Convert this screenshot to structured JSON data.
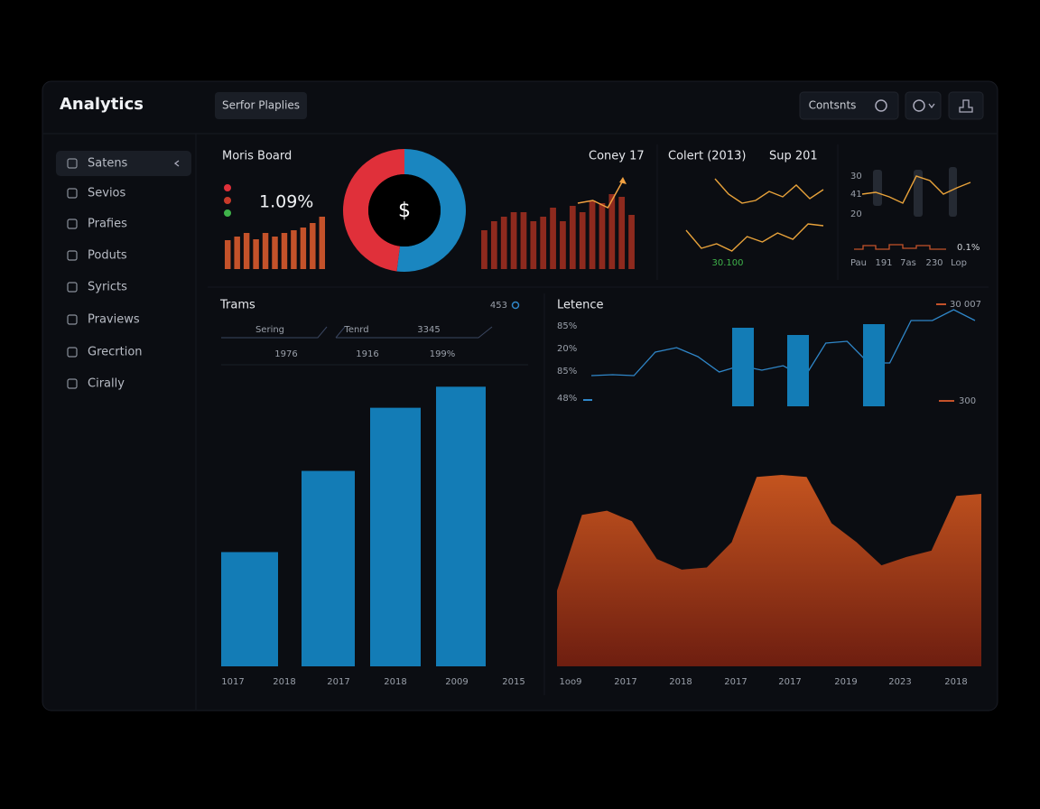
{
  "header": {
    "title": "Analytics",
    "search": "Serfor Plaplies",
    "button": "Contsnts"
  },
  "sidebar": [
    "Satens",
    "Sevios",
    "Prafies",
    "Poduts",
    "Syricts",
    "Praviews",
    "Grecrtion",
    "Cirally"
  ],
  "summary": {
    "title": "Moris Board",
    "value": "1.09%",
    "bars": {
      "type": "bar",
      "values": [
        32,
        36,
        40,
        33,
        40,
        36,
        40,
        43,
        46,
        51,
        58
      ],
      "ylim": [
        0,
        70
      ],
      "color": "#c4522a"
    },
    "donut": {
      "type": "pie",
      "values": [
        52,
        48
      ],
      "colors": [
        "#1a86c0",
        "#e0303a"
      ],
      "center": "$"
    }
  },
  "revenue": {
    "labels": [
      "Coney 17",
      "Colert (2013)",
      "Sup 201"
    ],
    "bars": {
      "type": "bar",
      "values": [
        43,
        53,
        58,
        63,
        63,
        53,
        58,
        68,
        53,
        70,
        63,
        76,
        73,
        83,
        80,
        60
      ],
      "ylim": [
        0,
        100
      ],
      "color": "#8e2a1e"
    },
    "trend": {
      "type": "line",
      "values": [
        73,
        76,
        68,
        98
      ],
      "ylim": [
        0,
        100
      ],
      "color": "#f0a040"
    }
  },
  "trends": {
    "type": "line",
    "note": "30.100",
    "ylim": [
      0,
      100
    ],
    "series": [
      {
        "color": "#e8a23a",
        "values": [
          87,
          70,
          60,
          63,
          73,
          67,
          80,
          65,
          75
        ]
      },
      {
        "color": "#e8a23a",
        "values": [
          30,
          10,
          15,
          7,
          23,
          17,
          27,
          20,
          37,
          35
        ]
      }
    ]
  },
  "mini": {
    "type": "line",
    "ylabels": [
      "30",
      "41",
      "20"
    ],
    "note": "0.1%",
    "xlabels": [
      "Pau",
      "191",
      "7as",
      "230",
      "Lop"
    ],
    "values": [
      30,
      32,
      27,
      20,
      50,
      45,
      30,
      37,
      43
    ],
    "ylim": [
      0,
      60
    ],
    "color": "#e8a23a"
  },
  "trams": {
    "title": "Trams",
    "count": "453",
    "columns": [
      "Sering",
      "Tenrd",
      "3345"
    ],
    "totals": [
      "1976",
      "1916",
      "199%"
    ],
    "chart": {
      "type": "bar",
      "values": [
        38,
        65,
        86,
        93
      ],
      "ylim": [
        0,
        100
      ],
      "color": "#137cb6",
      "xlabels": [
        "1017",
        "2018",
        "2017",
        "2018",
        "2009",
        "2015"
      ]
    }
  },
  "latency": {
    "title": "Letence",
    "ylabels": [
      "85%",
      "20%",
      "85%",
      "48%"
    ],
    "legend": [
      "30 007",
      "300"
    ],
    "ylim": [
      0,
      110
    ],
    "line": {
      "type": "line",
      "color": "#2f86c8",
      "values": [
        34,
        35,
        34,
        60,
        65,
        55,
        38,
        45,
        40,
        45,
        32,
        70,
        72,
        48,
        48,
        95,
        95,
        107,
        95
      ]
    },
    "bars": {
      "type": "bar",
      "color": "#137cb6",
      "values": [
        87,
        79,
        91
      ]
    }
  },
  "area": {
    "type": "area",
    "ylim": [
      0,
      100
    ],
    "color": "#b8481c",
    "values": [
      36,
      72,
      74,
      69,
      51,
      46,
      47,
      59,
      90,
      91,
      90,
      68,
      59,
      48,
      52,
      55,
      81,
      82
    ],
    "xlabels": [
      "1oo9",
      "2017",
      "2018",
      "2017",
      "2017",
      "2019",
      "2023",
      "2018"
    ]
  }
}
